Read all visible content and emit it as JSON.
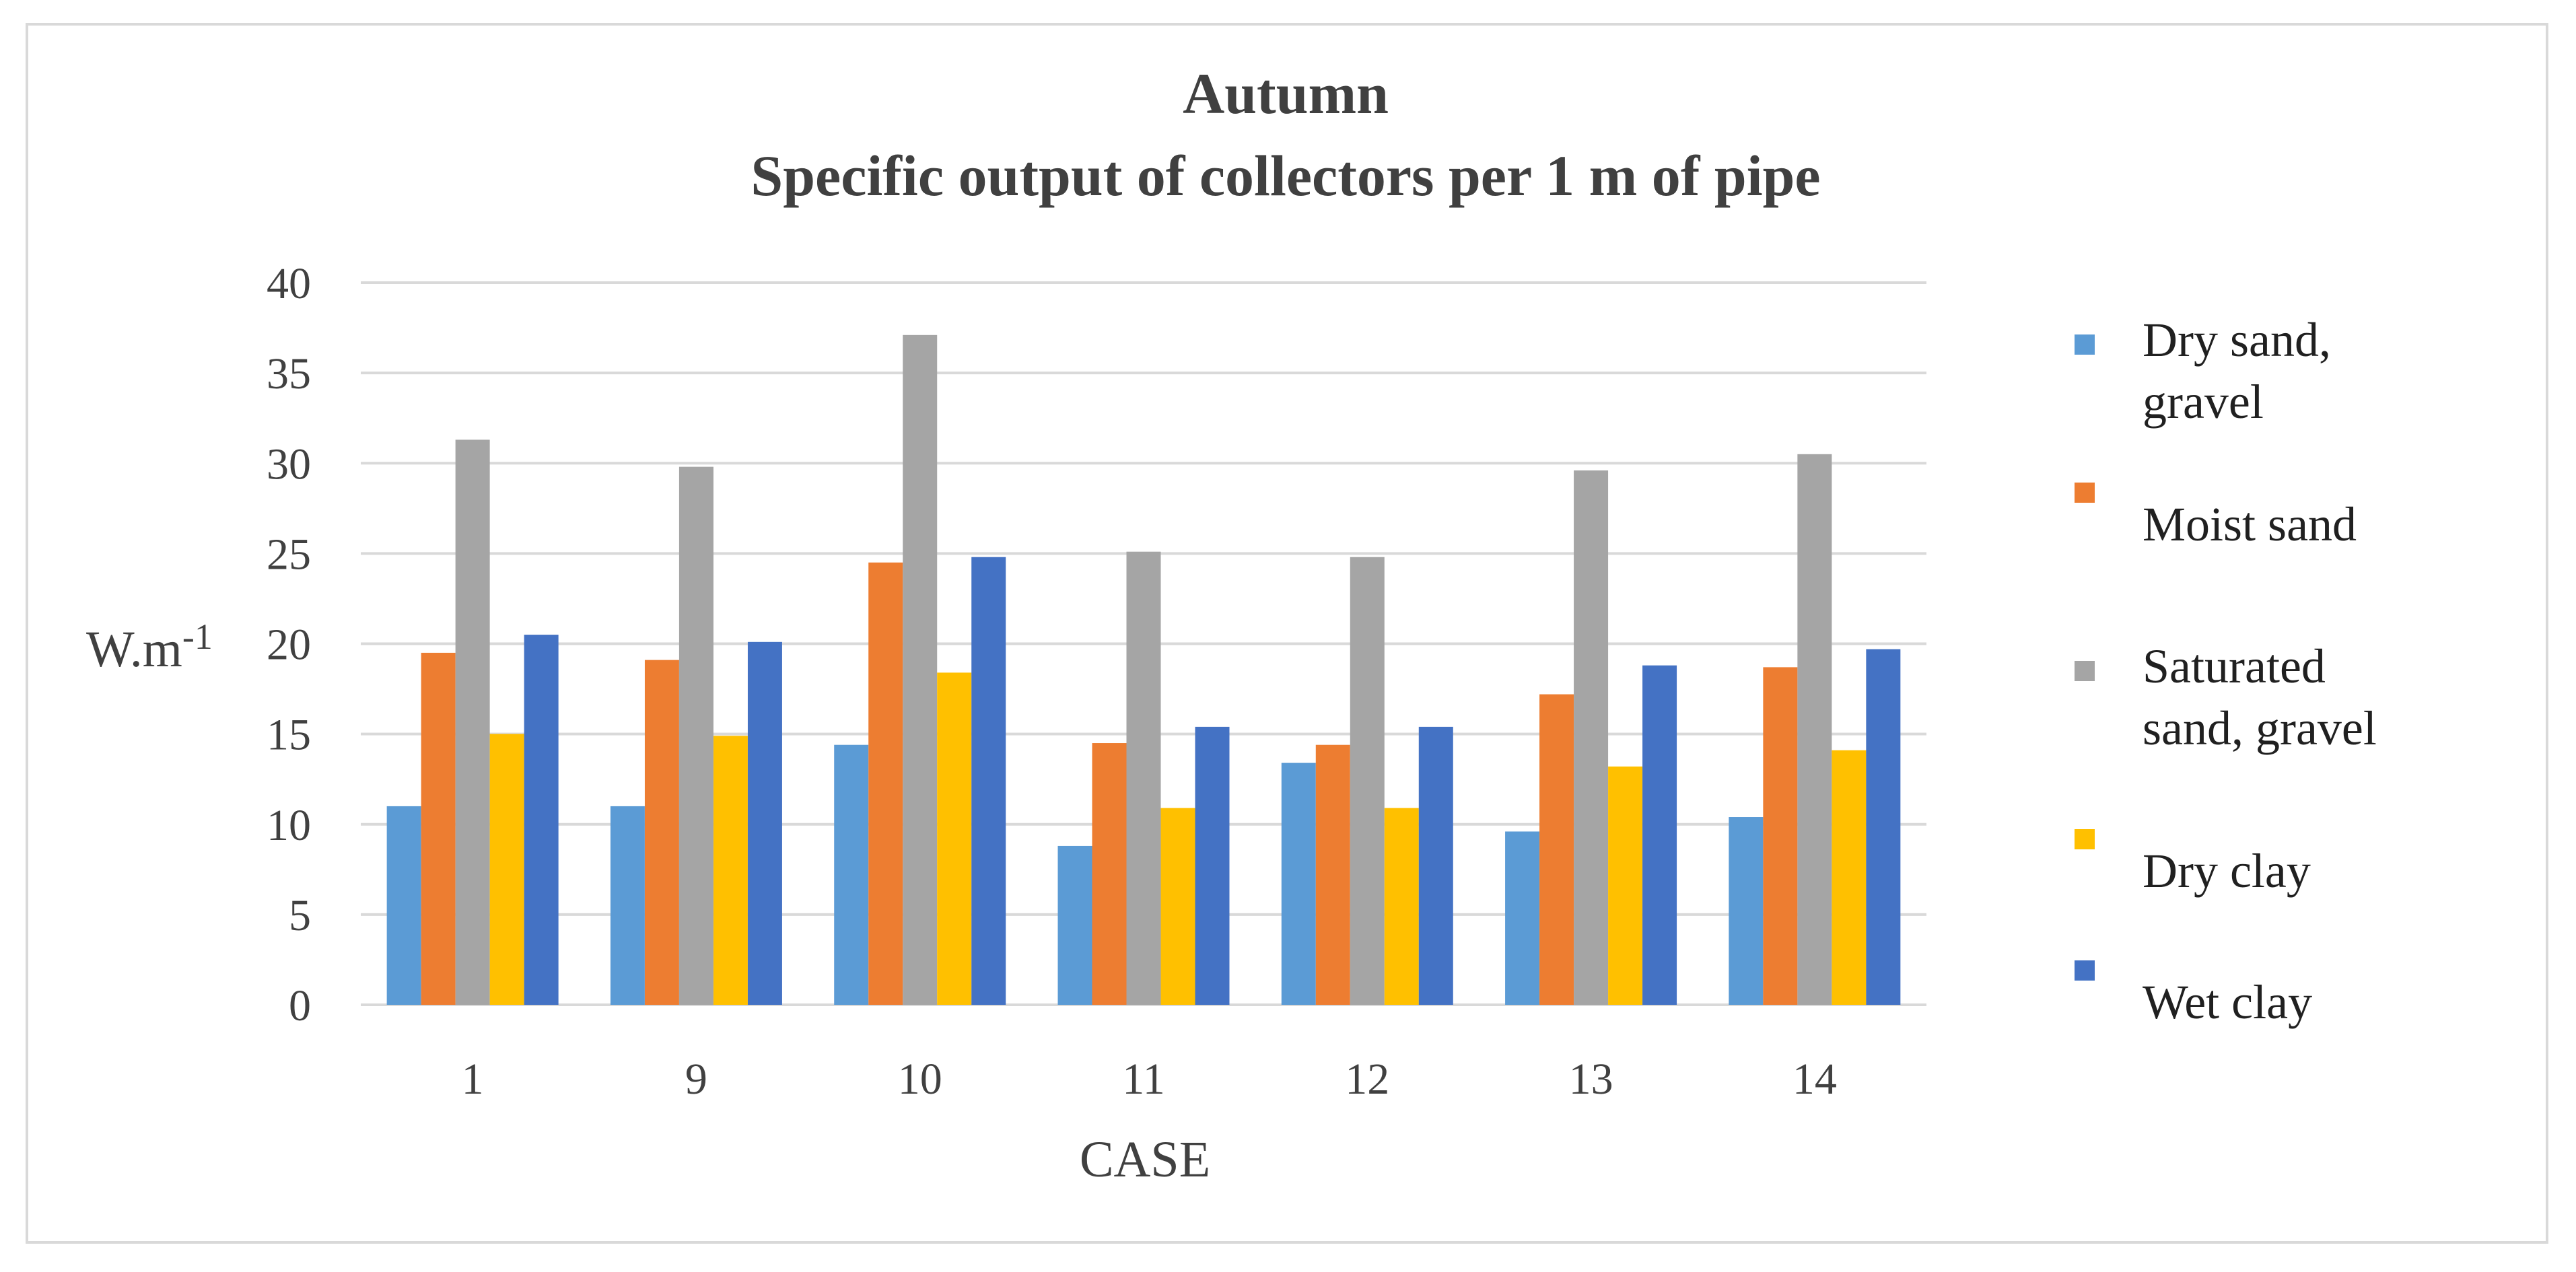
{
  "chart_data": {
    "type": "bar",
    "title": "Autumn",
    "subtitle": "Specific output of collectors per 1 m of pipe",
    "xlabel": "CASE",
    "ylabel": "W.m",
    "ylabel_sup": "-1",
    "categories": [
      "1",
      "9",
      "10",
      "11",
      "12",
      "13",
      "14"
    ],
    "ylim": [
      0,
      40
    ],
    "yticks": [
      0,
      5,
      10,
      15,
      20,
      25,
      30,
      35,
      40
    ],
    "grid": true,
    "legend_position": "right",
    "series": [
      {
        "name": [
          "Dry sand,",
          "gravel"
        ],
        "color": "#5b9bd5",
        "values": [
          11,
          11,
          14.4,
          8.8,
          13.4,
          9.6,
          10.4
        ]
      },
      {
        "name": [
          "Moist sand"
        ],
        "color": "#ed7d31",
        "values": [
          19.5,
          19.1,
          24.5,
          14.5,
          14.4,
          17.2,
          18.7
        ]
      },
      {
        "name": [
          "Saturated",
          "sand, gravel"
        ],
        "color": "#a5a5a5",
        "values": [
          31.3,
          29.8,
          37.1,
          25.1,
          24.8,
          29.6,
          30.5
        ]
      },
      {
        "name": [
          "Dry clay"
        ],
        "color": "#ffc000",
        "values": [
          15,
          14.9,
          18.4,
          10.9,
          10.9,
          13.2,
          14.1
        ]
      },
      {
        "name": [
          "Wet clay"
        ],
        "color": "#4472c4",
        "values": [
          20.5,
          20.1,
          24.8,
          15.4,
          15.4,
          18.8,
          19.7
        ]
      }
    ]
  }
}
